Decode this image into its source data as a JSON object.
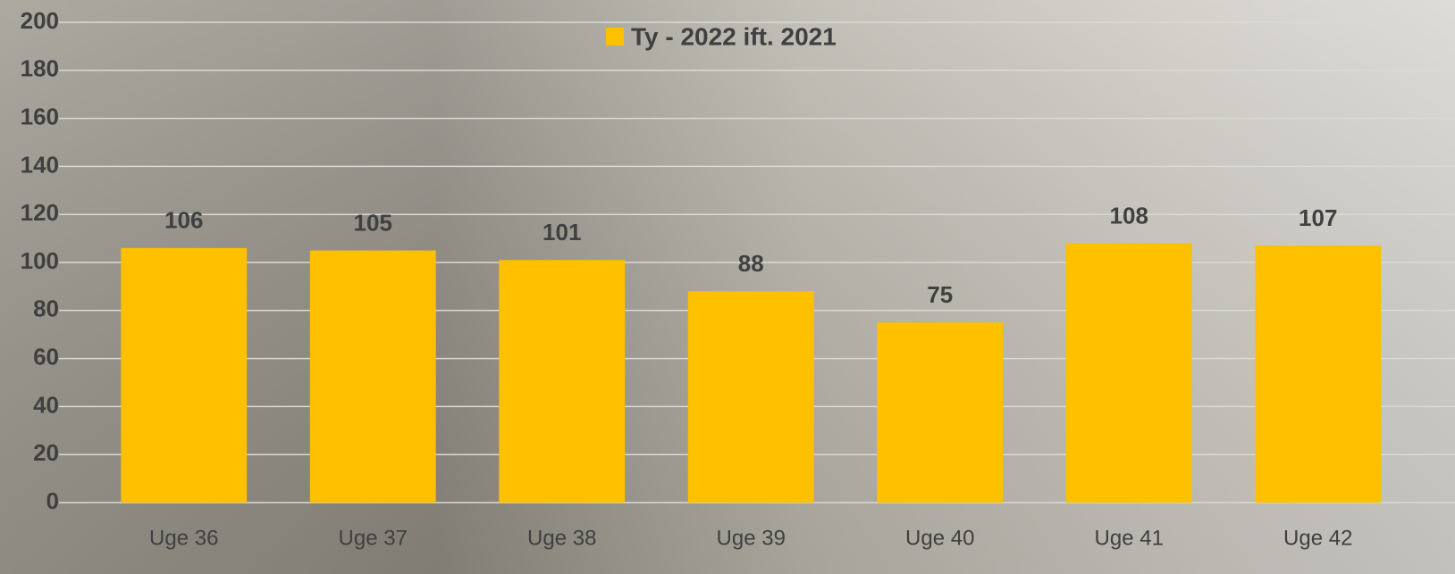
{
  "chart_data": {
    "type": "bar",
    "categories": [
      "Uge 36",
      "Uge 37",
      "Uge 38",
      "Uge 39",
      "Uge 40",
      "Uge 41",
      "Uge 42"
    ],
    "series": [
      {
        "name": "Ty - 2022 ift. 2021",
        "color": "#ffc000",
        "values": [
          106,
          105,
          101,
          88,
          75,
          108,
          107
        ]
      }
    ],
    "ylim": [
      0,
      200
    ],
    "yticks": [
      0,
      20,
      40,
      60,
      80,
      100,
      120,
      140,
      160,
      180,
      200
    ],
    "grid": true,
    "legend": "top"
  }
}
